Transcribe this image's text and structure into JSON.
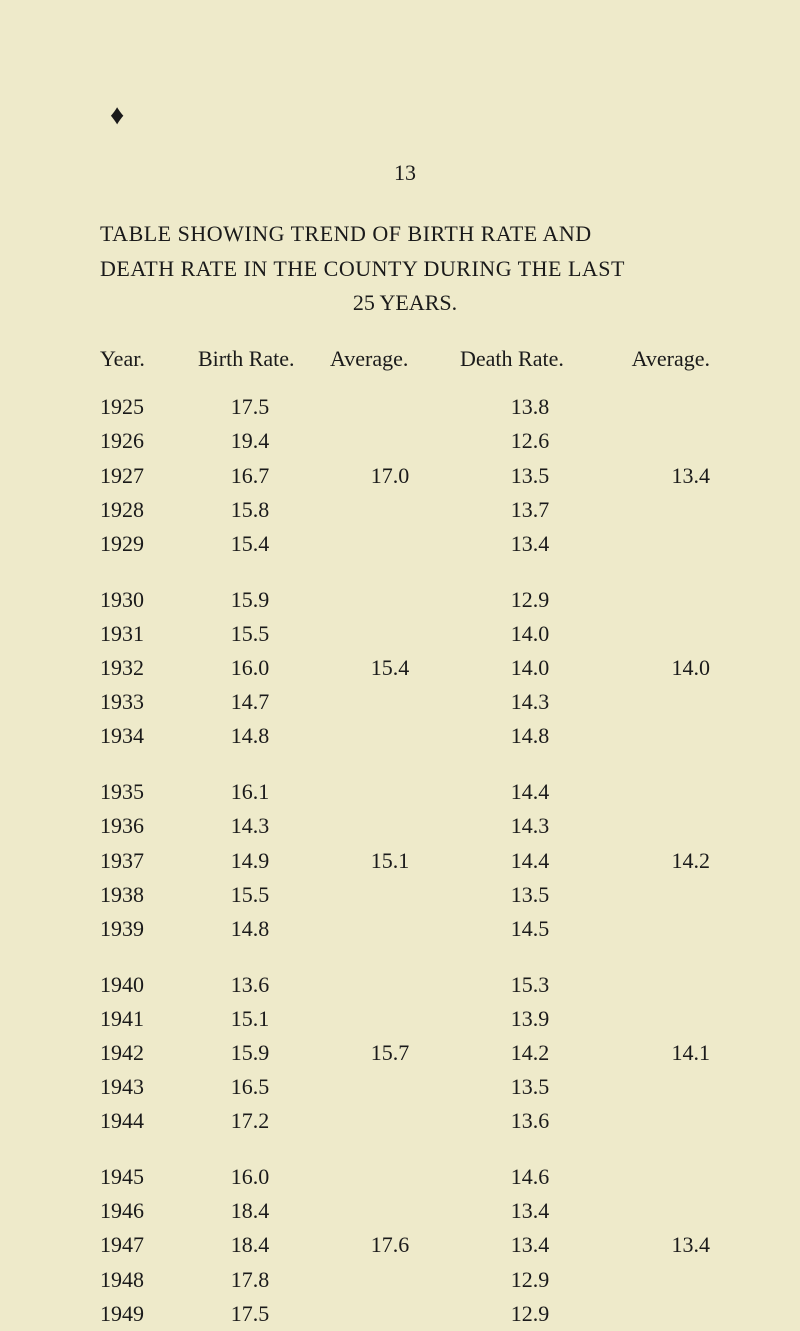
{
  "page_number": "13",
  "bullet_marker": "♦",
  "title": {
    "line1": "TABLE SHOWING TREND OF BIRTH RATE AND",
    "line2": "DEATH RATE IN THE COUNTY DURING THE LAST",
    "subtitle": "25 YEARS."
  },
  "headers": {
    "year": "Year.",
    "birth_rate": "Birth Rate.",
    "average1": "Average.",
    "death_rate": "Death Rate.",
    "average2": "Average."
  },
  "table": {
    "type": "table",
    "background_color": "#eeeaca",
    "text_color": "#1a1a1a",
    "font_family": "Times New Roman",
    "font_size_pt": 16,
    "groups": [
      {
        "rows": [
          {
            "year": "1925",
            "birth": "17.5",
            "avg1": "",
            "death": "13.8",
            "avg2": ""
          },
          {
            "year": "1926",
            "birth": "19.4",
            "avg1": "",
            "death": "12.6",
            "avg2": ""
          },
          {
            "year": "1927",
            "birth": "16.7",
            "avg1": "17.0",
            "death": "13.5",
            "avg2": "13.4"
          },
          {
            "year": "1928",
            "birth": "15.8",
            "avg1": "",
            "death": "13.7",
            "avg2": ""
          },
          {
            "year": "1929",
            "birth": "15.4",
            "avg1": "",
            "death": "13.4",
            "avg2": ""
          }
        ]
      },
      {
        "rows": [
          {
            "year": "1930",
            "birth": "15.9",
            "avg1": "",
            "death": "12.9",
            "avg2": ""
          },
          {
            "year": "1931",
            "birth": "15.5",
            "avg1": "",
            "death": "14.0",
            "avg2": ""
          },
          {
            "year": "1932",
            "birth": "16.0",
            "avg1": "15.4",
            "death": "14.0",
            "avg2": "14.0"
          },
          {
            "year": "1933",
            "birth": "14.7",
            "avg1": "",
            "death": "14.3",
            "avg2": ""
          },
          {
            "year": "1934",
            "birth": "14.8",
            "avg1": "",
            "death": "14.8",
            "avg2": ""
          }
        ]
      },
      {
        "rows": [
          {
            "year": "1935",
            "birth": "16.1",
            "avg1": "",
            "death": "14.4",
            "avg2": ""
          },
          {
            "year": "1936",
            "birth": "14.3",
            "avg1": "",
            "death": "14.3",
            "avg2": ""
          },
          {
            "year": "1937",
            "birth": "14.9",
            "avg1": "15.1",
            "death": "14.4",
            "avg2": "14.2"
          },
          {
            "year": "1938",
            "birth": "15.5",
            "avg1": "",
            "death": "13.5",
            "avg2": ""
          },
          {
            "year": "1939",
            "birth": "14.8",
            "avg1": "",
            "death": "14.5",
            "avg2": ""
          }
        ]
      },
      {
        "rows": [
          {
            "year": "1940",
            "birth": "13.6",
            "avg1": "",
            "death": "15.3",
            "avg2": ""
          },
          {
            "year": "1941",
            "birth": "15.1",
            "avg1": "",
            "death": "13.9",
            "avg2": ""
          },
          {
            "year": "1942",
            "birth": "15.9",
            "avg1": "15.7",
            "death": "14.2",
            "avg2": "14.1"
          },
          {
            "year": "1943",
            "birth": "16.5",
            "avg1": "",
            "death": "13.5",
            "avg2": ""
          },
          {
            "year": "1944",
            "birth": "17.2",
            "avg1": "",
            "death": "13.6",
            "avg2": ""
          }
        ]
      },
      {
        "rows": [
          {
            "year": "1945",
            "birth": "16.0",
            "avg1": "",
            "death": "14.6",
            "avg2": ""
          },
          {
            "year": "1946",
            "birth": "18.4",
            "avg1": "",
            "death": "13.4",
            "avg2": ""
          },
          {
            "year": "1947",
            "birth": "18.4",
            "avg1": "17.6",
            "death": "13.4",
            "avg2": "13.4"
          },
          {
            "year": "1948",
            "birth": "17.8",
            "avg1": "",
            "death": "12.9",
            "avg2": ""
          },
          {
            "year": "1949",
            "birth": "17.5",
            "avg1": "",
            "death": "12.9",
            "avg2": ""
          }
        ]
      }
    ]
  }
}
